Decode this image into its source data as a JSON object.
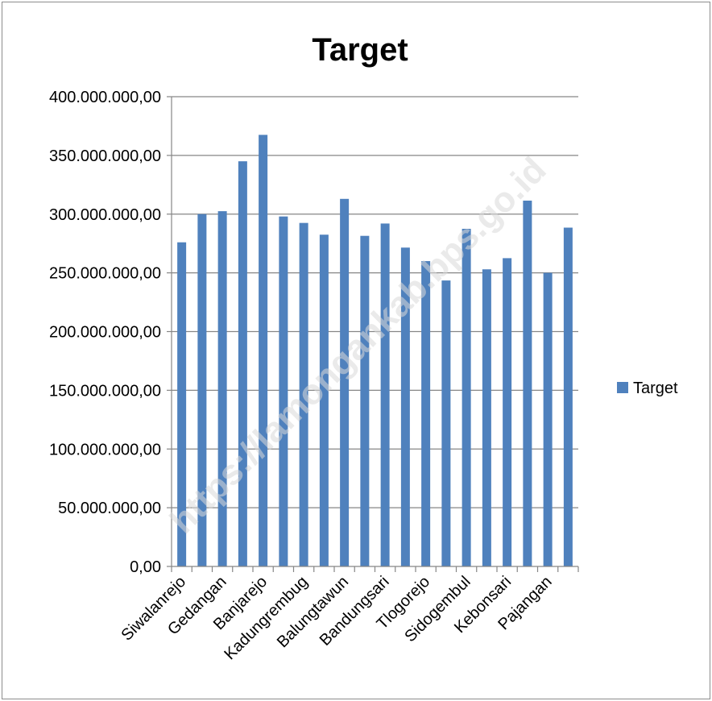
{
  "chart_data": {
    "type": "bar",
    "title": "Target",
    "xlabel": "",
    "ylabel": "",
    "ylim": [
      0,
      400000000
    ],
    "y_ticks": [
      0,
      50000000,
      100000000,
      150000000,
      200000000,
      250000000,
      300000000,
      350000000,
      400000000
    ],
    "y_tick_labels": [
      "0,00",
      "50.000.000,00",
      "100.000.000,00",
      "150.000.000,00",
      "200.000.000,00",
      "250.000.000,00",
      "300.000.000,00",
      "350.000.000,00",
      "400.000.000,00"
    ],
    "grid": true,
    "legend_position": "right",
    "categories": [
      "Siwalanrejo",
      "",
      "Gedangan",
      "",
      "Banjarejo",
      "",
      "Kadungrembug",
      "",
      "Balungtawun",
      "",
      "Bandungsari",
      "",
      "Tlogorejo",
      "",
      "Sidogembul",
      "",
      "Kebonsari",
      "",
      "Pajangan",
      ""
    ],
    "series": [
      {
        "name": "Target",
        "color": "#4f81bd",
        "values": [
          276000000,
          300000000,
          302500000,
          345000000,
          367500000,
          298000000,
          292500000,
          282500000,
          313000000,
          281500000,
          292000000,
          271500000,
          260000000,
          243500000,
          287500000,
          253000000,
          262500000,
          311500000,
          250000000,
          288500000
        ]
      }
    ]
  },
  "watermark": "https://lamongankab.bps.go.id"
}
